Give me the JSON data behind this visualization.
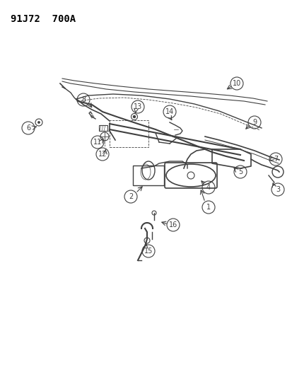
{
  "title": "91J72  700A",
  "background_color": "#ffffff",
  "line_color": "#404040",
  "part_numbers": [
    1,
    2,
    3,
    4,
    5,
    6,
    7,
    8,
    9,
    10,
    11,
    12,
    13,
    14,
    15,
    16
  ],
  "fig_width": 4.14,
  "fig_height": 5.33,
  "dpi": 100
}
